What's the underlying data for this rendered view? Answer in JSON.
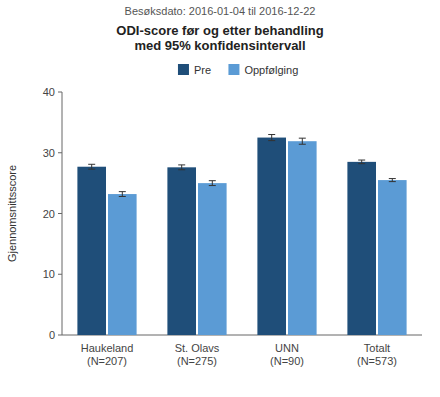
{
  "chart_data": {
    "type": "bar",
    "subtitle": "Besøksdato: 2016-01-04 til 2016-12-22",
    "title": "ODI-score før og etter behandling\nmed 95% konfidensintervall",
    "ylabel": "Gjennomsnittsscore",
    "categories": [
      "Haukeland\n(N=207)",
      "St. Olavs\n(N=275)",
      "UNN\n(N=90)",
      "Totalt\n(N=573)"
    ],
    "series": [
      {
        "name": "Pre",
        "color": "#1F4E79",
        "values": [
          27.7,
          27.6,
          32.5,
          28.5
        ],
        "errors": [
          0.4,
          0.4,
          0.5,
          0.3
        ]
      },
      {
        "name": "Oppfølging",
        "color": "#5B9BD5",
        "values": [
          23.2,
          25.0,
          31.9,
          25.5
        ],
        "errors": [
          0.4,
          0.4,
          0.5,
          0.25
        ]
      }
    ],
    "ylim": [
      0,
      40
    ],
    "yticks": [
      0,
      10,
      20,
      30,
      40
    ],
    "grid": false,
    "legend": "top"
  }
}
